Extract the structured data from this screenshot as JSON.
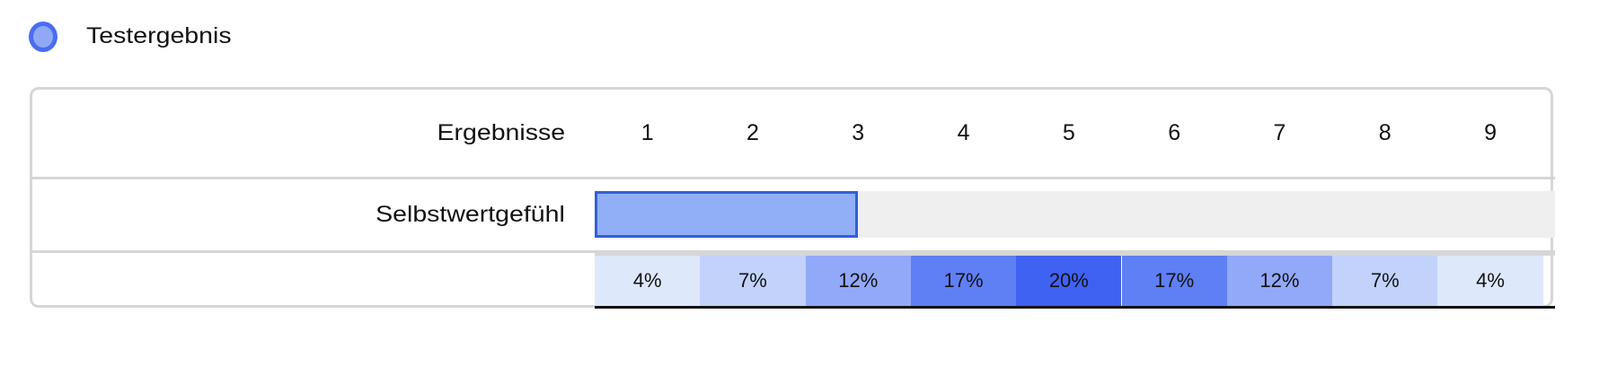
{
  "legend": {
    "label": "Testergebnis",
    "dot_fill": "#8fa9f5",
    "dot_border": "#4a6cf0"
  },
  "table": {
    "header_label": "Ergebnisse",
    "columns": [
      "1",
      "2",
      "3",
      "4",
      "5",
      "6",
      "7",
      "8",
      "9"
    ],
    "row_label": "Selbstwertgefühl",
    "score": 3,
    "max_score": 9,
    "bar_color": "#91aff7",
    "bar_border": "#3060d8",
    "distribution": [
      {
        "label": "4%",
        "color": "#dde8fb"
      },
      {
        "label": "7%",
        "color": "#c2d2fb"
      },
      {
        "label": "12%",
        "color": "#91a9f8"
      },
      {
        "label": "17%",
        "color": "#5f7ff5"
      },
      {
        "label": "20%",
        "color": "#4062f3"
      },
      {
        "label": "17%",
        "color": "#5f7ff5"
      },
      {
        "label": "12%",
        "color": "#91a9f8"
      },
      {
        "label": "7%",
        "color": "#c2d2fb"
      },
      {
        "label": "4%",
        "color": "#dde8fb"
      }
    ]
  }
}
